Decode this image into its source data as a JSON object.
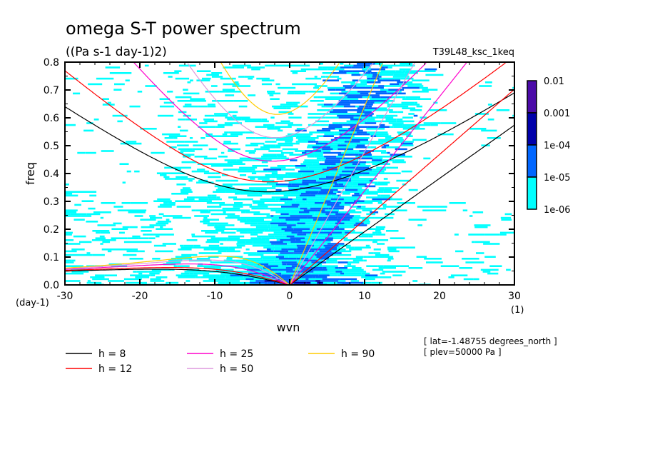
{
  "chart_data": {
    "type": "heatmap",
    "title": "omega S-T power spectrum",
    "subtitle": "((Pa s-1 day-1)2)",
    "run_label": "T39L48_ksc_1keq",
    "xlabel": "wvn",
    "ylabel": "freq",
    "x_unit": "(1)",
    "y_unit": "(day-1)",
    "xlim": [
      -30,
      30
    ],
    "ylim": [
      0.0,
      0.8
    ],
    "x_ticks": [
      -30,
      -20,
      -10,
      0,
      10,
      20,
      30
    ],
    "x_tick_labels": [
      "-30",
      "-20",
      "-10",
      "0",
      "10",
      "20",
      "30"
    ],
    "y_ticks": [
      0.0,
      0.1,
      0.2,
      0.3,
      0.4,
      0.5,
      0.6,
      0.7,
      0.8
    ],
    "y_tick_labels": [
      "0.0",
      "0.1",
      "0.2",
      "0.3",
      "0.4",
      "0.5",
      "0.6",
      "0.7",
      "0.8"
    ],
    "colorbar": {
      "levels": [
        "1e-06",
        "1e-05",
        "1e-04",
        "0.001",
        "0.01"
      ],
      "colors": [
        "#00ffff",
        "#0066ff",
        "#0000aa",
        "#4b0aa8"
      ]
    },
    "annotations": [
      "[ lat=-1.48755 degrees_north ]",
      "[ plev=50000 Pa ]"
    ],
    "series": [
      {
        "name": "h =  8",
        "h": 8,
        "color": "#000000"
      },
      {
        "name": "h = 12",
        "h": 12,
        "color": "#ff0000"
      },
      {
        "name": "h = 25",
        "h": 25,
        "color": "#ff00cc"
      },
      {
        "name": "h = 50",
        "h": 50,
        "color": "#dd99dd"
      },
      {
        "name": "h = 90",
        "h": 90,
        "color": "#ffcc00"
      }
    ]
  }
}
